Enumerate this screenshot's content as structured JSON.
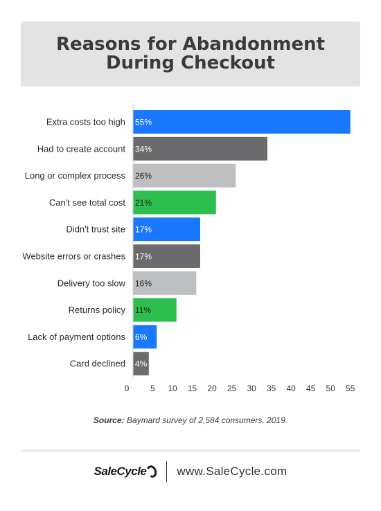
{
  "title": "Reasons for Abandonment During Checkout",
  "source": {
    "label": "Source:",
    "text": "Baymard survey of 2,584 consumers, 2019."
  },
  "footer": {
    "brand": "SaleCycle",
    "site": "www.SaleCycle.com"
  },
  "colors": {
    "blue": "#1a78ff",
    "dark": "#6b6b6d",
    "light": "#bdbfc1",
    "green": "#2ebd4f"
  },
  "chart_data": {
    "type": "bar",
    "orientation": "horizontal",
    "categories": [
      "Extra costs too high",
      "Had to create account",
      "Long or complex process",
      "Can't see total cost",
      "Didn't trust site",
      "Website errors or crashes",
      "Delivery too slow",
      "Returns policy",
      "Lack of payment options",
      "Card declined"
    ],
    "values": [
      55,
      34,
      26,
      21,
      17,
      17,
      16,
      11,
      6,
      4
    ],
    "value_labels": [
      "55%",
      "34%",
      "26%",
      "21%",
      "17%",
      "17%",
      "16%",
      "11%",
      "6%",
      "4%"
    ],
    "bar_colors": [
      "#1a78ff",
      "#6b6b6d",
      "#bdbfc1",
      "#2ebd4f",
      "#1a78ff",
      "#6b6b6d",
      "#bdbfc1",
      "#2ebd4f",
      "#1a78ff",
      "#6b6b6d"
    ],
    "label_colors": [
      "#ffffff",
      "#ffffff",
      "#222222",
      "#222222",
      "#ffffff",
      "#ffffff",
      "#222222",
      "#222222",
      "#ffffff",
      "#ffffff"
    ],
    "xticks": [
      0,
      5,
      10,
      15,
      20,
      25,
      30,
      35,
      40,
      45,
      50,
      55
    ],
    "xlim": [
      0,
      57.5
    ],
    "grid": false,
    "legend": "none"
  }
}
